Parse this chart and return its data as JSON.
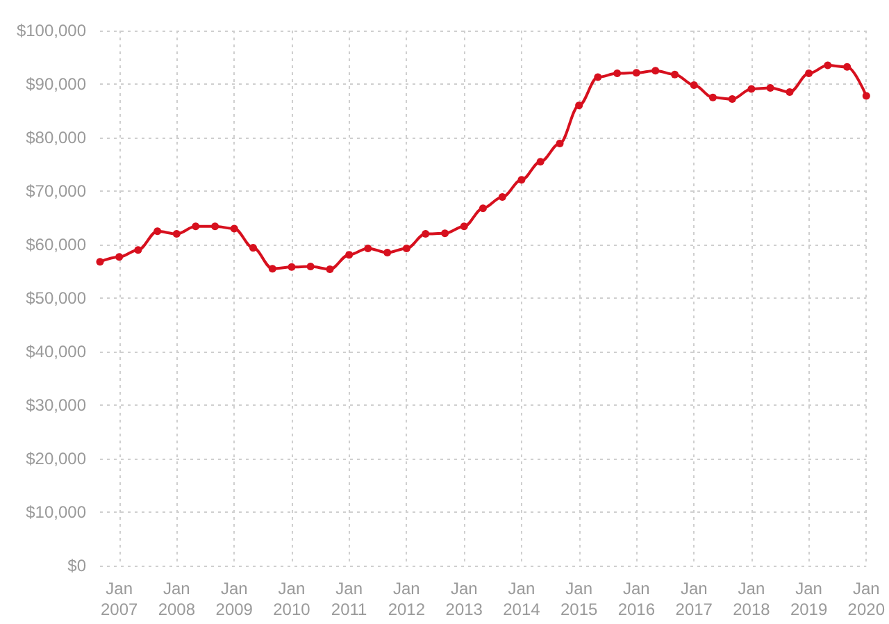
{
  "chart_data": {
    "type": "line",
    "x": [
      "2006-09",
      "2007-01",
      "2007-05",
      "2007-09",
      "2008-01",
      "2008-05",
      "2008-09",
      "2009-01",
      "2009-05",
      "2009-09",
      "2010-01",
      "2010-05",
      "2010-09",
      "2011-01",
      "2011-05",
      "2011-09",
      "2012-01",
      "2012-05",
      "2012-09",
      "2013-01",
      "2013-05",
      "2013-09",
      "2014-01",
      "2014-05",
      "2014-09",
      "2015-01",
      "2015-05",
      "2015-09",
      "2016-01",
      "2016-05",
      "2016-09",
      "2017-01",
      "2017-05",
      "2017-09",
      "2018-01",
      "2018-05",
      "2018-09",
      "2019-01",
      "2019-05",
      "2019-09",
      "2020-01"
    ],
    "series": [
      {
        "color": "#d7101e",
        "values": [
          56800,
          57700,
          59000,
          62500,
          62000,
          63400,
          63400,
          63000,
          59400,
          55500,
          55800,
          55900,
          55400,
          58100,
          59300,
          58500,
          59300,
          62000,
          62100,
          63400,
          66800,
          68900,
          72100,
          75500,
          78900,
          86000,
          91300,
          92000,
          92100,
          92500,
          91800,
          89800,
          87500,
          87200,
          89100,
          89300,
          88500,
          92000,
          93500,
          93200,
          87800
        ]
      }
    ],
    "xlim": [
      "2006-09",
      "2020-01"
    ],
    "xticks": [
      {
        "value": "2007-01",
        "label": "Jan\n2007"
      },
      {
        "value": "2008-01",
        "label": "Jan\n2008"
      },
      {
        "value": "2009-01",
        "label": "Jan\n2009"
      },
      {
        "value": "2010-01",
        "label": "Jan\n2010"
      },
      {
        "value": "2011-01",
        "label": "Jan\n2011"
      },
      {
        "value": "2012-01",
        "label": "Jan\n2012"
      },
      {
        "value": "2013-01",
        "label": "Jan\n2013"
      },
      {
        "value": "2014-01",
        "label": "Jan\n2014"
      },
      {
        "value": "2015-01",
        "label": "Jan\n2015"
      },
      {
        "value": "2016-01",
        "label": "Jan\n2016"
      },
      {
        "value": "2017-01",
        "label": "Jan\n2017"
      },
      {
        "value": "2018-01",
        "label": "Jan\n2018"
      },
      {
        "value": "2019-01",
        "label": "Jan\n2019"
      },
      {
        "value": "2020-01",
        "label": "Jan\n2020"
      }
    ],
    "ylim": [
      0,
      100000
    ],
    "yticks": [
      {
        "value": 0,
        "label": "$0"
      },
      {
        "value": 10000,
        "label": "$10,000"
      },
      {
        "value": 20000,
        "label": "$20,000"
      },
      {
        "value": 30000,
        "label": "$30,000"
      },
      {
        "value": 40000,
        "label": "$40,000"
      },
      {
        "value": 50000,
        "label": "$50,000"
      },
      {
        "value": 60000,
        "label": "$60,000"
      },
      {
        "value": 70000,
        "label": "$70,000"
      },
      {
        "value": 80000,
        "label": "$80,000"
      },
      {
        "value": 90000,
        "label": "$90,000"
      },
      {
        "value": 100000,
        "label": "$100,000"
      }
    ],
    "grid": true,
    "marker": "circle",
    "line_style": "solid"
  }
}
